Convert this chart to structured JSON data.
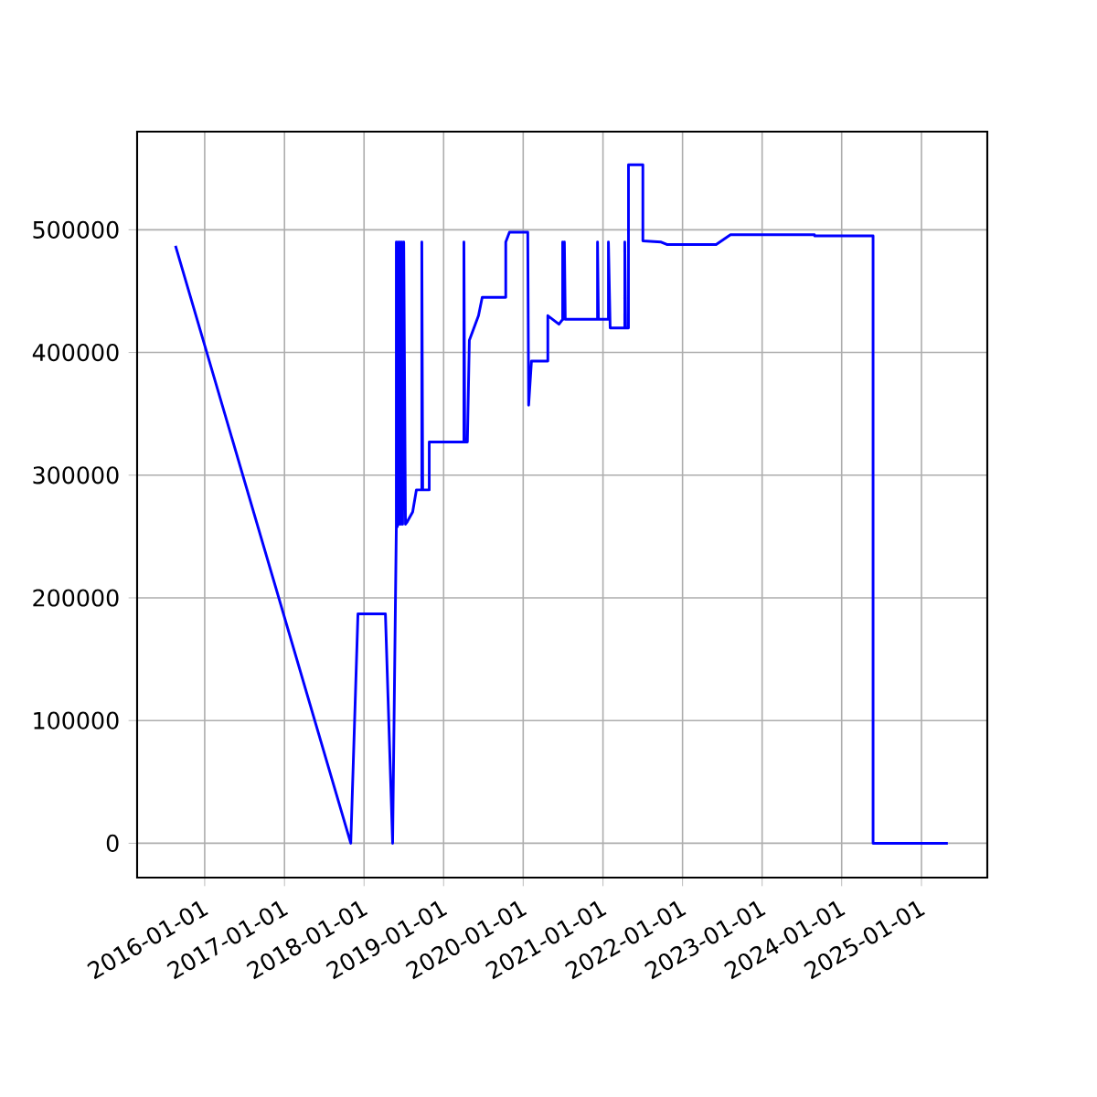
{
  "chart_data": {
    "type": "line",
    "color": "#0000ff",
    "grid": true,
    "xlim": [
      "2015-02-25",
      "2025-10-30"
    ],
    "ylim": [
      -28000,
      580000
    ],
    "xticks": [
      "2016-01-01",
      "2017-01-01",
      "2018-01-01",
      "2019-01-01",
      "2020-01-01",
      "2021-01-01",
      "2022-01-01",
      "2023-01-01",
      "2024-01-01",
      "2025-01-01"
    ],
    "yticks": [
      0,
      100000,
      200000,
      300000,
      400000,
      500000
    ],
    "x": [
      "2015-08-20",
      "2017-11-01",
      "2017-12-04",
      "2018-04-09",
      "2018-05-12",
      "2018-05-29",
      "2018-05-29",
      "2018-06-03",
      "2018-06-07",
      "2018-06-11",
      "2018-06-15",
      "2018-06-19",
      "2018-06-23",
      "2018-06-27",
      "2018-07-02",
      "2018-07-10",
      "2018-07-18",
      "2018-08-12",
      "2018-08-29",
      "2018-09-23",
      "2018-09-23",
      "2018-09-27",
      "2018-10-27",
      "2018-10-27",
      "2019-04-04",
      "2019-04-04",
      "2019-04-08",
      "2019-04-20",
      "2019-04-29",
      "2019-06-10",
      "2019-06-27",
      "2019-10-13",
      "2019-10-13",
      "2019-10-30",
      "2020-01-22",
      "2020-01-26",
      "2020-02-08",
      "2020-04-23",
      "2020-04-23",
      "2020-06-13",
      "2020-06-30",
      "2020-06-30",
      "2020-07-04",
      "2020-07-08",
      "2020-07-12",
      "2020-12-07",
      "2020-12-07",
      "2020-12-11",
      "2021-01-26",
      "2021-01-26",
      "2021-02-03",
      "2021-04-11",
      "2021-04-11",
      "2021-04-15",
      "2021-04-28",
      "2021-04-28",
      "2021-07-03",
      "2021-07-03",
      "2021-09-25",
      "2021-10-21",
      "2022-06-04",
      "2022-08-09",
      "2023-08-29",
      "2023-08-30",
      "2024-05-24",
      "2024-05-24",
      "2025-05-02"
    ],
    "values": [
      487000,
      0,
      187000,
      187000,
      0,
      258000,
      490000,
      258000,
      490000,
      260000,
      490000,
      260000,
      490000,
      260000,
      490000,
      260000,
      262000,
      270000,
      288000,
      288000,
      490000,
      288000,
      288000,
      327000,
      327000,
      490000,
      327000,
      327000,
      410000,
      430000,
      445000,
      445000,
      490000,
      498000,
      498000,
      357000,
      393000,
      393000,
      430000,
      423000,
      427000,
      490000,
      427000,
      490000,
      427000,
      427000,
      490000,
      427000,
      427000,
      490000,
      420000,
      420000,
      490000,
      420000,
      420000,
      553000,
      553000,
      491000,
      490000,
      488000,
      488000,
      496000,
      496000,
      495000,
      495000,
      0,
      0
    ]
  }
}
